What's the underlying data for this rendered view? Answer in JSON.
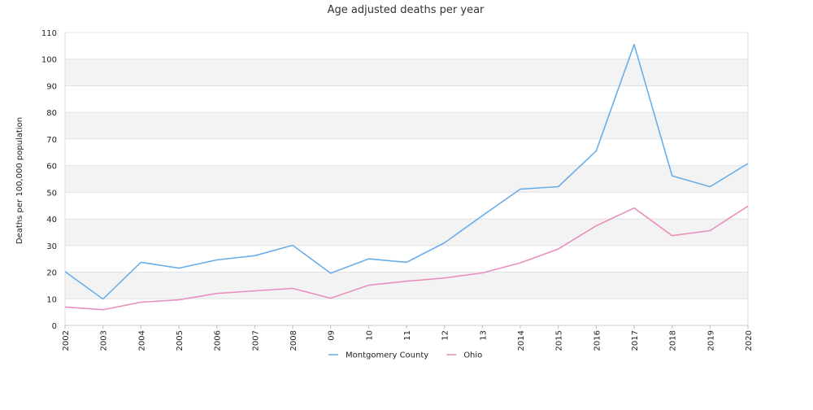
{
  "chart_data": {
    "type": "line",
    "title": "Age adjusted deaths per year",
    "xlabel": "",
    "ylabel": "Deaths per 100,000 population",
    "categories": [
      "2002",
      "2003",
      "2004",
      "2005",
      "2006",
      "2007",
      "2008",
      "09",
      "10",
      "11",
      "12",
      "13",
      "2014",
      "2015",
      "2016",
      "2017",
      "2018",
      "2019",
      "2020"
    ],
    "ylim": [
      0,
      110
    ],
    "yticks": [
      0,
      10,
      20,
      30,
      40,
      50,
      60,
      70,
      80,
      90,
      100,
      110
    ],
    "grid": "alternating horizontal bands",
    "legend_position": "bottom-center",
    "series": [
      {
        "name": "Montgomery County",
        "color": "#6aaee8",
        "values": [
          20.2,
          9.9,
          23.7,
          21.5,
          24.6,
          26.2,
          30.1,
          19.6,
          25.0,
          23.7,
          31.0,
          41.2,
          51.2,
          52.1,
          65.5,
          105.5,
          56.2,
          52.1,
          60.8
        ]
      },
      {
        "name": "Ohio",
        "color": "#e98fbf",
        "values": [
          6.9,
          5.9,
          8.7,
          9.6,
          12.0,
          13.0,
          13.9,
          10.2,
          15.1,
          16.6,
          17.8,
          19.7,
          23.5,
          28.7,
          37.4,
          44.1,
          33.7,
          35.6,
          44.8
        ]
      }
    ]
  }
}
